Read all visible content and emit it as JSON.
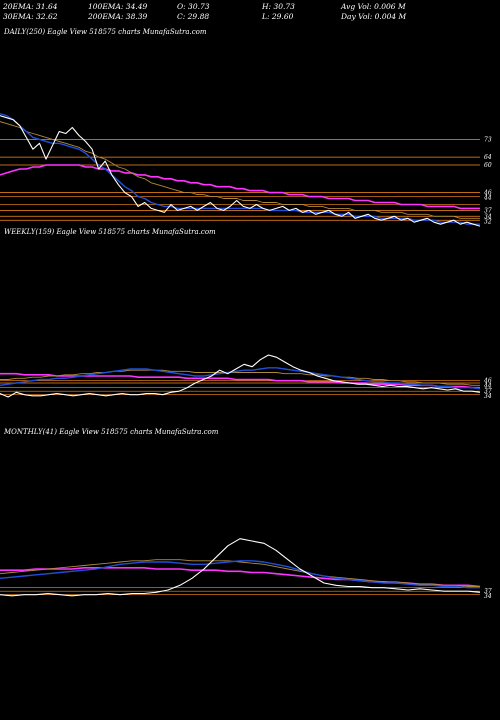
{
  "stats": {
    "row1": [
      "20EMA: 31.64",
      "100EMA: 34.49",
      "O: 30.73",
      "H: 30.73",
      "Avg Vol: 0.006  M"
    ],
    "row2": [
      "30EMA: 32.62",
      "200EMA: 38.39",
      "C: 29.88",
      "L: 29.60",
      "Day Vol: 0.004  M"
    ]
  },
  "panels": {
    "daily": {
      "title": "DAILY(250) Eagle   View  518575 charts MunafaSutra.com"
    },
    "weekly": {
      "title": "WEEKLY(159) Eagle   View  518575 charts MunafaSutra.com"
    },
    "monthly": {
      "title": "MONTHLY(41) Eagle   View  518575 charts MunafaSutra.com"
    }
  },
  "colors": {
    "background": "#000000",
    "price": "#ffffff",
    "ema_short": "#1f4fd8",
    "ema_mid": "#b08a3c",
    "ema_long": "#ff33ff",
    "level": "#ff8c1a"
  },
  "chart_data": [
    {
      "type": "line",
      "panel": "daily",
      "level_labels": [
        "73",
        "64",
        "60",
        "46",
        "44",
        "37",
        "34",
        "32"
      ],
      "levels": [
        73,
        64,
        60,
        46,
        44,
        40,
        37,
        34,
        32
      ],
      "ylim": [
        24,
        95
      ],
      "series": [
        {
          "role": "price",
          "values": [
            85,
            84,
            83,
            80,
            74,
            68,
            71,
            63,
            70,
            77,
            76,
            79,
            75,
            72,
            68,
            58,
            62,
            55,
            50,
            46,
            44,
            39,
            41,
            38,
            37,
            36,
            40,
            37,
            38,
            39,
            37,
            39,
            41,
            38,
            37,
            39,
            42,
            39,
            38,
            40,
            38,
            37,
            38,
            39,
            37,
            38,
            36,
            37,
            35,
            36,
            37,
            35,
            34,
            36,
            33,
            34,
            35,
            33,
            32,
            33,
            34,
            32,
            33,
            31,
            32,
            33,
            31,
            30,
            31,
            32,
            30,
            31,
            30,
            29
          ]
        },
        {
          "role": "ema_short",
          "values": [
            86,
            85,
            83,
            80,
            77,
            74,
            73,
            72,
            71,
            71,
            70,
            69,
            68,
            66,
            63,
            60,
            58,
            55,
            52,
            49,
            47,
            44,
            43,
            41,
            40,
            39,
            39,
            38,
            38,
            38,
            38,
            38,
            38,
            38,
            38,
            38,
            38,
            38,
            38,
            38,
            38,
            37,
            37,
            37,
            37,
            37,
            36,
            36,
            36,
            36,
            36,
            35,
            35,
            35,
            34,
            34,
            34,
            34,
            33,
            33,
            33,
            33,
            33,
            32,
            32,
            32,
            32,
            31,
            31,
            31,
            31,
            30,
            30,
            30
          ]
        },
        {
          "role": "ema_mid",
          "values": [
            82,
            81,
            80,
            79,
            77,
            76,
            75,
            74,
            73,
            72,
            71,
            70,
            69,
            67,
            66,
            64,
            63,
            61,
            59,
            58,
            56,
            54,
            53,
            51,
            50,
            49,
            48,
            47,
            46,
            46,
            45,
            45,
            44,
            44,
            43,
            43,
            43,
            42,
            42,
            42,
            41,
            41,
            41,
            40,
            40,
            40,
            40,
            39,
            39,
            39,
            38,
            38,
            38,
            38,
            37,
            37,
            37,
            37,
            36,
            36,
            36,
            36,
            35,
            35,
            35,
            35,
            34,
            34,
            34,
            34,
            33,
            33,
            33,
            33
          ]
        },
        {
          "role": "ema_long",
          "values": [
            55,
            56,
            57,
            58,
            58,
            59,
            59,
            60,
            60,
            60,
            60,
            60,
            60,
            59,
            59,
            58,
            58,
            57,
            57,
            56,
            56,
            55,
            55,
            54,
            54,
            53,
            53,
            52,
            52,
            51,
            51,
            50,
            50,
            49,
            49,
            49,
            48,
            48,
            47,
            47,
            47,
            46,
            46,
            46,
            45,
            45,
            45,
            44,
            44,
            44,
            43,
            43,
            43,
            43,
            42,
            42,
            42,
            41,
            41,
            41,
            41,
            40,
            40,
            40,
            40,
            39,
            39,
            39,
            39,
            39,
            38,
            38,
            38,
            38
          ]
        }
      ]
    },
    {
      "type": "line",
      "panel": "weekly",
      "level_labels": [
        "46",
        "44",
        "37",
        "34"
      ],
      "levels": [
        46,
        44,
        40,
        37,
        34
      ],
      "ylim": [
        20,
        140
      ],
      "series": [
        {
          "role": "price",
          "values": [
            35,
            32,
            36,
            34,
            33,
            33,
            34,
            35,
            34,
            33,
            34,
            35,
            34,
            33,
            34,
            35,
            34,
            34,
            35,
            35,
            34,
            36,
            37,
            40,
            44,
            47,
            50,
            55,
            52,
            56,
            60,
            58,
            64,
            68,
            66,
            62,
            58,
            55,
            53,
            50,
            48,
            46,
            45,
            44,
            43,
            43,
            42,
            41,
            42,
            41,
            41,
            40,
            39,
            40,
            39,
            38,
            39,
            37,
            37,
            36
          ]
        },
        {
          "role": "ema_short",
          "values": [
            42,
            43,
            44,
            45,
            46,
            47,
            47,
            48,
            48,
            49,
            50,
            51,
            52,
            53,
            54,
            55,
            56,
            56,
            56,
            55,
            54,
            53,
            52,
            51,
            50,
            50,
            51,
            52,
            53,
            54,
            55,
            55,
            56,
            57,
            57,
            56,
            55,
            54,
            53,
            52,
            51,
            50,
            49,
            48,
            47,
            46,
            45,
            45,
            44,
            44,
            43,
            43,
            42,
            42,
            41,
            41,
            40,
            40,
            40,
            39
          ]
        },
        {
          "role": "ema_mid",
          "values": [
            47,
            47,
            48,
            48,
            49,
            49,
            50,
            50,
            51,
            51,
            52,
            52,
            53,
            53,
            54,
            54,
            55,
            55,
            55,
            55,
            55,
            54,
            54,
            54,
            53,
            53,
            53,
            53,
            53,
            53,
            53,
            53,
            53,
            53,
            53,
            52,
            52,
            52,
            51,
            51,
            50,
            50,
            49,
            49,
            48,
            48,
            47,
            47,
            46,
            46,
            45,
            45,
            44,
            44,
            44,
            43,
            43,
            43,
            42,
            42
          ]
        },
        {
          "role": "ema_long",
          "values": [
            52,
            52,
            52,
            51,
            51,
            51,
            51,
            50,
            50,
            50,
            50,
            50,
            50,
            50,
            50,
            50,
            50,
            49,
            49,
            49,
            49,
            49,
            49,
            48,
            48,
            48,
            48,
            48,
            48,
            47,
            47,
            47,
            47,
            47,
            46,
            46,
            46,
            46,
            45,
            45,
            45,
            45,
            44,
            44,
            44,
            44,
            43,
            43,
            43,
            43,
            42,
            42,
            42,
            42,
            41,
            41,
            41,
            41,
            40,
            40
          ]
        }
      ]
    },
    {
      "type": "line",
      "panel": "monthly",
      "level_labels": [
        "37",
        "34"
      ],
      "levels": [
        40,
        37,
        34
      ],
      "ylim": [
        20,
        140
      ],
      "series": [
        {
          "role": "price",
          "values": [
            34,
            33,
            34,
            34,
            35,
            34,
            33,
            34,
            34,
            35,
            34,
            35,
            35,
            36,
            38,
            42,
            48,
            56,
            66,
            76,
            82,
            80,
            78,
            72,
            64,
            56,
            50,
            44,
            42,
            41,
            41,
            40,
            40,
            39,
            38,
            39,
            38,
            37,
            37,
            37,
            36
          ]
        },
        {
          "role": "ema_short",
          "values": [
            48,
            49,
            50,
            51,
            52,
            53,
            54,
            55,
            56,
            58,
            60,
            61,
            62,
            62,
            62,
            61,
            60,
            60,
            61,
            62,
            63,
            63,
            62,
            60,
            58,
            55,
            52,
            50,
            48,
            47,
            46,
            45,
            44,
            44,
            43,
            42,
            42,
            41,
            41,
            40,
            40
          ]
        },
        {
          "role": "ema_mid",
          "values": [
            52,
            53,
            54,
            55,
            56,
            57,
            58,
            59,
            60,
            61,
            62,
            63,
            63,
            64,
            64,
            64,
            63,
            63,
            63,
            63,
            62,
            61,
            60,
            58,
            56,
            54,
            52,
            50,
            49,
            48,
            47,
            46,
            45,
            45,
            44,
            43,
            43,
            42,
            42,
            41,
            41
          ]
        },
        {
          "role": "ema_long",
          "values": [
            55,
            55,
            55,
            56,
            56,
            56,
            56,
            57,
            57,
            57,
            57,
            57,
            57,
            56,
            56,
            56,
            55,
            55,
            55,
            54,
            54,
            53,
            53,
            52,
            51,
            50,
            49,
            48,
            47,
            47,
            46,
            45,
            45,
            44,
            44,
            43,
            43,
            42,
            42,
            42,
            41
          ]
        }
      ]
    }
  ]
}
